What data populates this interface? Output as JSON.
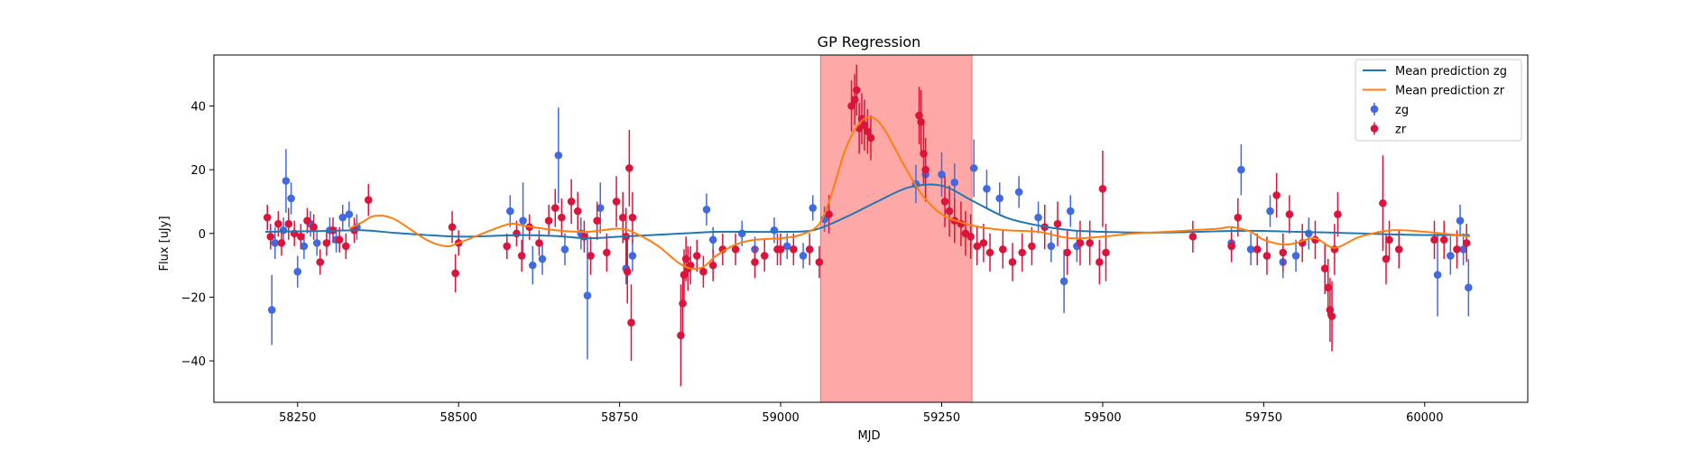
{
  "chart_data": {
    "type": "scatter",
    "title": "GP Regression",
    "xlabel": "MJD",
    "ylabel": "Flux [uJy]",
    "xlim": [
      58120,
      60160
    ],
    "ylim": [
      -53,
      56
    ],
    "xticks": [
      58250,
      58500,
      58750,
      59000,
      59250,
      59500,
      59750,
      60000
    ],
    "yticks": [
      -40,
      -20,
      0,
      20,
      40
    ],
    "grid": false,
    "legend_position": "top-right",
    "shaded_region": {
      "x_start": 59062,
      "x_end": 59297,
      "color": "#ff9999"
    },
    "series": [
      {
        "name": "Mean prediction zg",
        "kind": "line",
        "color": "#1f77b4",
        "x": [
          58200,
          58300,
          58350,
          58400,
          58450,
          58500,
          58550,
          58600,
          58650,
          58700,
          58750,
          58800,
          58850,
          58900,
          58950,
          59000,
          59050,
          59100,
          59150,
          59200,
          59250,
          59300,
          59350,
          59400,
          59450,
          59500,
          59550,
          59600,
          59650,
          59700,
          59750,
          59800,
          59850,
          59900,
          59950,
          60000,
          60050,
          60070
        ],
        "y": [
          0.5,
          0.8,
          1.0,
          0.2,
          -0.5,
          -1.0,
          -0.8,
          -0.5,
          -0.8,
          -1.5,
          -1.0,
          -0.5,
          0.0,
          0.5,
          0.5,
          0.5,
          1.0,
          5.0,
          10.0,
          14.5,
          15.0,
          10.0,
          5.0,
          2.5,
          1.0,
          0.5,
          0.3,
          0.3,
          0.5,
          0.8,
          0.8,
          0.5,
          0.3,
          0.0,
          -0.3,
          -0.5,
          -0.5,
          -0.5
        ]
      },
      {
        "name": "Mean prediction zr",
        "kind": "line",
        "color": "#ff7f0e",
        "x": [
          58330,
          58350,
          58370,
          58400,
          58450,
          58480,
          58500,
          58550,
          58580,
          58600,
          58650,
          58700,
          58750,
          58780,
          58810,
          58840,
          58860,
          58880,
          58900,
          58930,
          58960,
          59000,
          59030,
          59060,
          59080,
          59100,
          59120,
          59140,
          59160,
          59190,
          59220,
          59250,
          59280,
          59310,
          59350,
          59400,
          59450,
          59500,
          59550,
          59600,
          59640,
          59680,
          59700,
          59730,
          59750,
          59780,
          59800,
          59830,
          59860,
          59900,
          59950,
          60000,
          60050,
          60070
        ],
        "y": [
          1.5,
          3.5,
          5.5,
          4.5,
          -2.0,
          -4.0,
          -3.0,
          1.0,
          3.0,
          2.5,
          1.0,
          0.5,
          1.5,
          -0.5,
          -4.0,
          -9.0,
          -11.0,
          -10.5,
          -7.0,
          -3.5,
          -2.0,
          -1.5,
          -0.5,
          3.0,
          13.0,
          26.0,
          34.0,
          36.5,
          33.0,
          22.0,
          12.0,
          6.0,
          3.5,
          2.0,
          1.0,
          0.5,
          -1.5,
          -1.0,
          0.0,
          0.5,
          1.0,
          1.5,
          2.0,
          0.5,
          -2.0,
          -3.5,
          -3.0,
          -1.5,
          -4.5,
          -1.0,
          1.0,
          0.5,
          -0.5,
          -1.0
        ]
      },
      {
        "name": "zg",
        "kind": "errorbar",
        "color": "#4169e1",
        "x": [
          58210,
          58215,
          58228,
          58232,
          58240,
          58250,
          58260,
          58270,
          58280,
          58300,
          58310,
          58320,
          58330,
          58342,
          58580,
          58600,
          58615,
          58630,
          58655,
          58665,
          58690,
          58700,
          58720,
          58760,
          58770,
          58885,
          58895,
          58940,
          58960,
          58990,
          59010,
          59035,
          59050,
          59068,
          59210,
          59225,
          59250,
          59270,
          59300,
          59320,
          59340,
          59370,
          59400,
          59420,
          59440,
          59450,
          59460,
          59700,
          59715,
          59730,
          59760,
          59780,
          59800,
          59820,
          60020,
          60040,
          60055,
          60060,
          60068
        ],
        "y": [
          -24,
          -3,
          1,
          16.5,
          11,
          -12,
          -4,
          3,
          -3,
          1,
          -2,
          5,
          6,
          2,
          7,
          4,
          -10,
          -8,
          24.5,
          -5,
          0,
          -19.5,
          8,
          -11,
          -7,
          7.5,
          -2,
          0,
          -5,
          1,
          -4,
          -7,
          8,
          4.5,
          15.5,
          18.5,
          18.5,
          16,
          20.5,
          14,
          11,
          13,
          5,
          -4,
          -15,
          7,
          -4,
          -3,
          20,
          -5,
          7,
          -9,
          -7,
          0,
          -13,
          -7,
          4,
          -5,
          -17
        ],
        "err": [
          11,
          5,
          4,
          10,
          5,
          5,
          4,
          4,
          4,
          4,
          4,
          4,
          4,
          4,
          5,
          12,
          6,
          5,
          15,
          5,
          5,
          20,
          8,
          5,
          5,
          5,
          4,
          4,
          4,
          4,
          4,
          4,
          4,
          4,
          6,
          6,
          7,
          6,
          9,
          6,
          5,
          5,
          5,
          5,
          10,
          5,
          5,
          5,
          8,
          5,
          5,
          5,
          5,
          5,
          13,
          6,
          5,
          5,
          9
        ]
      },
      {
        "name": "zr",
        "kind": "errorbar",
        "color": "#dc143c",
        "x": [
          58203,
          58208,
          58220,
          58225,
          58236,
          58245,
          58255,
          58265,
          58275,
          58285,
          58295,
          58305,
          58315,
          58325,
          58338,
          58360,
          58490,
          58495,
          58500,
          58575,
          58590,
          58598,
          58610,
          58625,
          58640,
          58650,
          58660,
          58675,
          58685,
          58695,
          58705,
          58715,
          58730,
          58745,
          58755,
          58760,
          58762,
          58765,
          58768,
          58770,
          58845,
          58848,
          58850,
          58853,
          58856,
          58860,
          58870,
          58880,
          58895,
          58910,
          58930,
          58960,
          58975,
          58995,
          59000,
          59020,
          59045,
          59060,
          59075,
          59110,
          59115,
          59118,
          59122,
          59126,
          59130,
          59135,
          59140,
          59215,
          59218,
          59222,
          59225,
          59255,
          59262,
          59270,
          59280,
          59287,
          59295,
          59305,
          59315,
          59325,
          59345,
          59360,
          59375,
          59390,
          59410,
          59430,
          59445,
          59465,
          59480,
          59495,
          59500,
          59505,
          59640,
          59700,
          59710,
          59740,
          59755,
          59770,
          59780,
          59790,
          59810,
          59830,
          59845,
          59850,
          59853,
          59856,
          59860,
          59865,
          59935,
          59940,
          59945,
          59960,
          60015,
          60030,
          60050,
          60065
        ],
        "y": [
          5,
          -1,
          3,
          -3,
          3,
          0,
          -1,
          4,
          2,
          -9,
          -3,
          1,
          -2,
          -4,
          1,
          10.5,
          2,
          -12.5,
          -3,
          -4,
          0,
          -7,
          2,
          -3,
          4,
          8,
          5,
          10,
          7,
          -1,
          -7,
          4,
          -6,
          10,
          5,
          -1,
          -12,
          20.5,
          -28,
          5,
          -32,
          -22,
          -13,
          -8,
          -11,
          -10,
          -7,
          -12,
          -10,
          -5,
          -5,
          -9,
          -7,
          -5,
          -5,
          -5,
          -5,
          -9,
          6,
          40,
          42,
          45,
          33,
          36,
          34,
          32,
          30,
          37,
          35,
          25,
          20,
          10,
          7,
          4,
          3,
          0,
          -1,
          -4,
          -3,
          -6,
          -5,
          -9,
          -6,
          -4,
          2,
          3,
          -6,
          -3,
          -3,
          -9,
          14,
          -6,
          -1,
          -4,
          5,
          -5,
          -7,
          12,
          -6,
          6,
          -3,
          -2,
          -11,
          -17,
          -24,
          -26,
          -5,
          6,
          9.5,
          -8,
          -2,
          -5,
          -2,
          -2,
          -5,
          -3
        ],
        "err": [
          4,
          4,
          4,
          4,
          5,
          4,
          4,
          4,
          4,
          4,
          4,
          4,
          4,
          4,
          4,
          5,
          5,
          6,
          4,
          4,
          4,
          5,
          4,
          4,
          5,
          6,
          6,
          7,
          6,
          5,
          6,
          6,
          6,
          8,
          8,
          9,
          10,
          12,
          12,
          8,
          16,
          10,
          8,
          7,
          7,
          6,
          5,
          5,
          5,
          5,
          5,
          5,
          5,
          5,
          5,
          5,
          5,
          5,
          6,
          8,
          8,
          8,
          8,
          8,
          8,
          7,
          7,
          9,
          10,
          10,
          10,
          8,
          8,
          7,
          7,
          7,
          7,
          6,
          6,
          6,
          6,
          6,
          6,
          6,
          7,
          7,
          7,
          7,
          7,
          7,
          12,
          9,
          5,
          5,
          6,
          5,
          6,
          7,
          6,
          6,
          6,
          6,
          8,
          9,
          10,
          11,
          8,
          7,
          15,
          8,
          6,
          6,
          6,
          6,
          6,
          6
        ]
      }
    ]
  }
}
